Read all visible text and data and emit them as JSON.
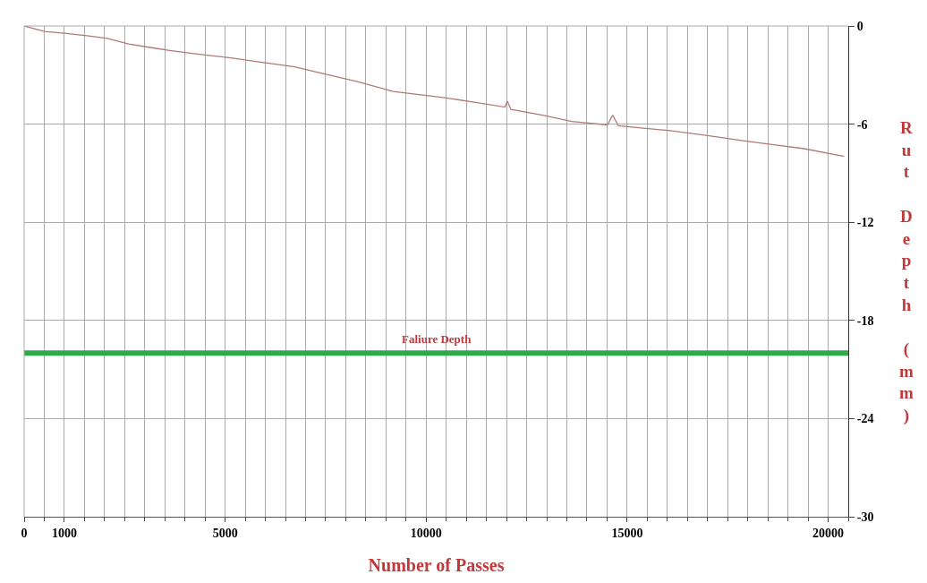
{
  "chart_data": {
    "type": "line",
    "xlabel": "Number of Passes",
    "ylabel": "Rut Depth (mm)",
    "x": [
      0,
      510,
      1000,
      1560,
      2070,
      2600,
      3100,
      3620,
      4400,
      5180,
      6000,
      6730,
      7500,
      8290,
      9180,
      10510,
      11300,
      11960,
      12020,
      12110,
      12900,
      13620,
      14510,
      14640,
      14780,
      15400,
      16070,
      17000,
      17840,
      18600,
      19400,
      20400
    ],
    "series": [
      {
        "color": "#b07a78",
        "values": [
          0,
          -0.33,
          -0.45,
          -0.6,
          -0.76,
          -1.1,
          -1.3,
          -1.5,
          -1.75,
          -1.96,
          -2.25,
          -2.5,
          -2.95,
          -3.4,
          -4.0,
          -4.4,
          -4.7,
          -4.96,
          -4.6,
          -5.1,
          -5.45,
          -5.84,
          -6.05,
          -5.45,
          -6.1,
          -6.25,
          -6.4,
          -6.7,
          -7.0,
          -7.25,
          -7.5,
          -7.97
        ]
      }
    ],
    "xlim": [
      0,
      20500
    ],
    "xticks": [
      0,
      1000,
      5000,
      10000,
      15000,
      20000
    ],
    "ylim": [
      -30,
      0
    ],
    "yticks": [
      0,
      -6,
      -12,
      -18,
      -24,
      -30
    ],
    "grid": true,
    "marker": "none",
    "line_style": "solid",
    "ref_lines": [
      {
        "axis": "y",
        "value": -20,
        "label": "Faliure Depth",
        "color": "#2eaa4a"
      }
    ]
  }
}
